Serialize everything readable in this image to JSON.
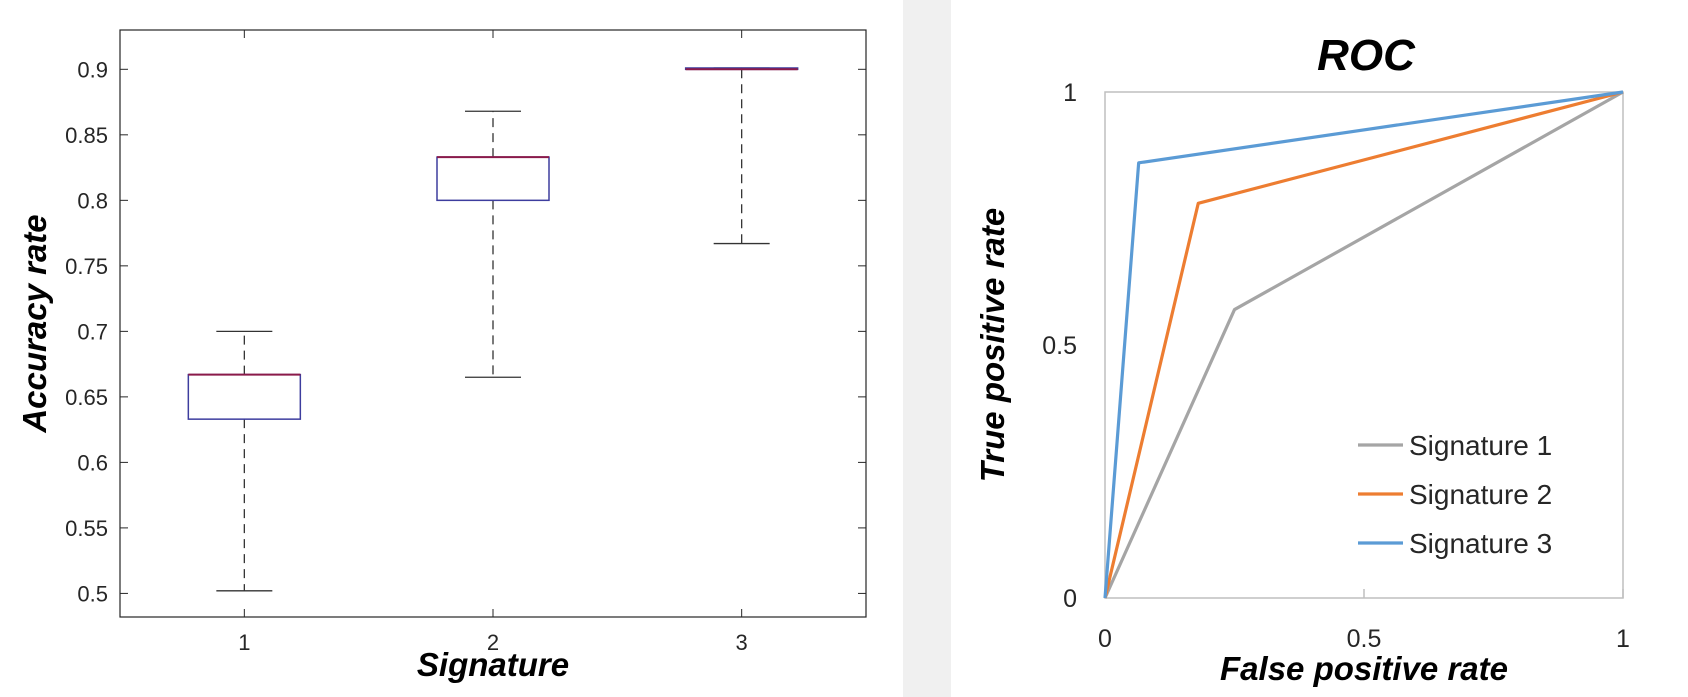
{
  "chart_data": [
    {
      "type": "box",
      "title": "",
      "xlabel": "Signature",
      "ylabel": "Accuracy rate",
      "categories": [
        "1",
        "2",
        "3"
      ],
      "ylim": [
        0.482,
        0.93
      ],
      "yticks": [
        "0.5",
        "0.55",
        "0.6",
        "0.65",
        "0.7",
        "0.75",
        "0.8",
        "0.85",
        "0.9"
      ],
      "grid": false,
      "boxes": [
        {
          "category": "1",
          "min": 0.502,
          "q1": 0.633,
          "median": 0.667,
          "q3": 0.667,
          "max": 0.7
        },
        {
          "category": "2",
          "min": 0.665,
          "q1": 0.8,
          "median": 0.833,
          "q3": 0.833,
          "max": 0.868
        },
        {
          "category": "3",
          "min": 0.767,
          "q1": 0.9,
          "median": 0.9,
          "q3": 0.901,
          "max": 0.901
        }
      ],
      "colors": {
        "box": "#3d3d9e",
        "median": "#8b1a4a",
        "whisker": "#333333"
      }
    },
    {
      "type": "line",
      "title": "ROC",
      "xlabel": "False positive rate",
      "ylabel": "True positive rate",
      "xlim": [
        0,
        1
      ],
      "ylim": [
        0,
        1
      ],
      "xticks": [
        "0",
        "0.5",
        "1"
      ],
      "yticks": [
        "0",
        "0.5",
        "1"
      ],
      "grid": false,
      "legend_position": "bottom-right",
      "series": [
        {
          "name": "Signature 1",
          "color": "#a5a5a5",
          "x": [
            0,
            0.25,
            1
          ],
          "y": [
            0,
            0.57,
            1
          ]
        },
        {
          "name": "Signature 2",
          "color": "#ed7d31",
          "x": [
            0,
            0.18,
            1
          ],
          "y": [
            0,
            0.78,
            1
          ]
        },
        {
          "name": "Signature 3",
          "color": "#5b9bd5",
          "x": [
            0,
            0.065,
            1
          ],
          "y": [
            0,
            0.86,
            1
          ]
        }
      ]
    }
  ]
}
